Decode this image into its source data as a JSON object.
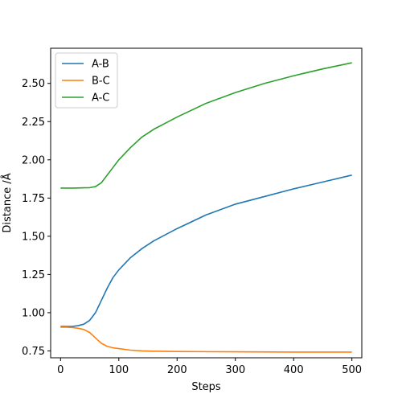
{
  "chart_data": {
    "type": "line",
    "title": "",
    "xlabel": "Steps",
    "ylabel": "Distance /Å",
    "xlim": [
      -17,
      517
    ],
    "ylim": [
      0.705,
      2.73
    ],
    "x_ticks": [
      0,
      100,
      200,
      300,
      400,
      500
    ],
    "y_ticks": [
      0.75,
      1.0,
      1.25,
      1.5,
      1.75,
      2.0,
      2.25,
      2.5
    ],
    "y_tick_labels": [
      "0.75",
      "1.00",
      "1.25",
      "1.50",
      "1.75",
      "2.00",
      "2.25",
      "2.50"
    ],
    "grid": false,
    "legend_position": "upper-left",
    "series": [
      {
        "name": "A-B",
        "color": "#1f77b4",
        "x": [
          0,
          10,
          20,
          30,
          40,
          50,
          60,
          70,
          80,
          90,
          100,
          120,
          140,
          160,
          180,
          200,
          250,
          300,
          350,
          400,
          450,
          500
        ],
        "y": [
          0.91,
          0.91,
          0.91,
          0.915,
          0.925,
          0.95,
          1.0,
          1.08,
          1.16,
          1.23,
          1.28,
          1.36,
          1.42,
          1.47,
          1.51,
          1.55,
          1.64,
          1.71,
          1.76,
          1.81,
          1.855,
          1.9
        ]
      },
      {
        "name": "B-C",
        "color": "#ff7f0e",
        "x": [
          0,
          10,
          20,
          30,
          40,
          50,
          60,
          70,
          80,
          90,
          100,
          120,
          140,
          160,
          200,
          300,
          400,
          500
        ],
        "y": [
          0.905,
          0.905,
          0.903,
          0.898,
          0.89,
          0.87,
          0.835,
          0.8,
          0.78,
          0.77,
          0.765,
          0.755,
          0.75,
          0.748,
          0.746,
          0.744,
          0.742,
          0.742
        ]
      },
      {
        "name": "A-C",
        "color": "#2ca02c",
        "x": [
          0,
          10,
          20,
          30,
          40,
          50,
          60,
          70,
          80,
          90,
          100,
          120,
          140,
          160,
          180,
          200,
          250,
          300,
          350,
          400,
          450,
          500
        ],
        "y": [
          1.815,
          1.815,
          1.815,
          1.816,
          1.817,
          1.818,
          1.825,
          1.85,
          1.9,
          1.95,
          2.0,
          2.08,
          2.15,
          2.2,
          2.24,
          2.28,
          2.37,
          2.44,
          2.5,
          2.55,
          2.595,
          2.635
        ]
      }
    ]
  }
}
